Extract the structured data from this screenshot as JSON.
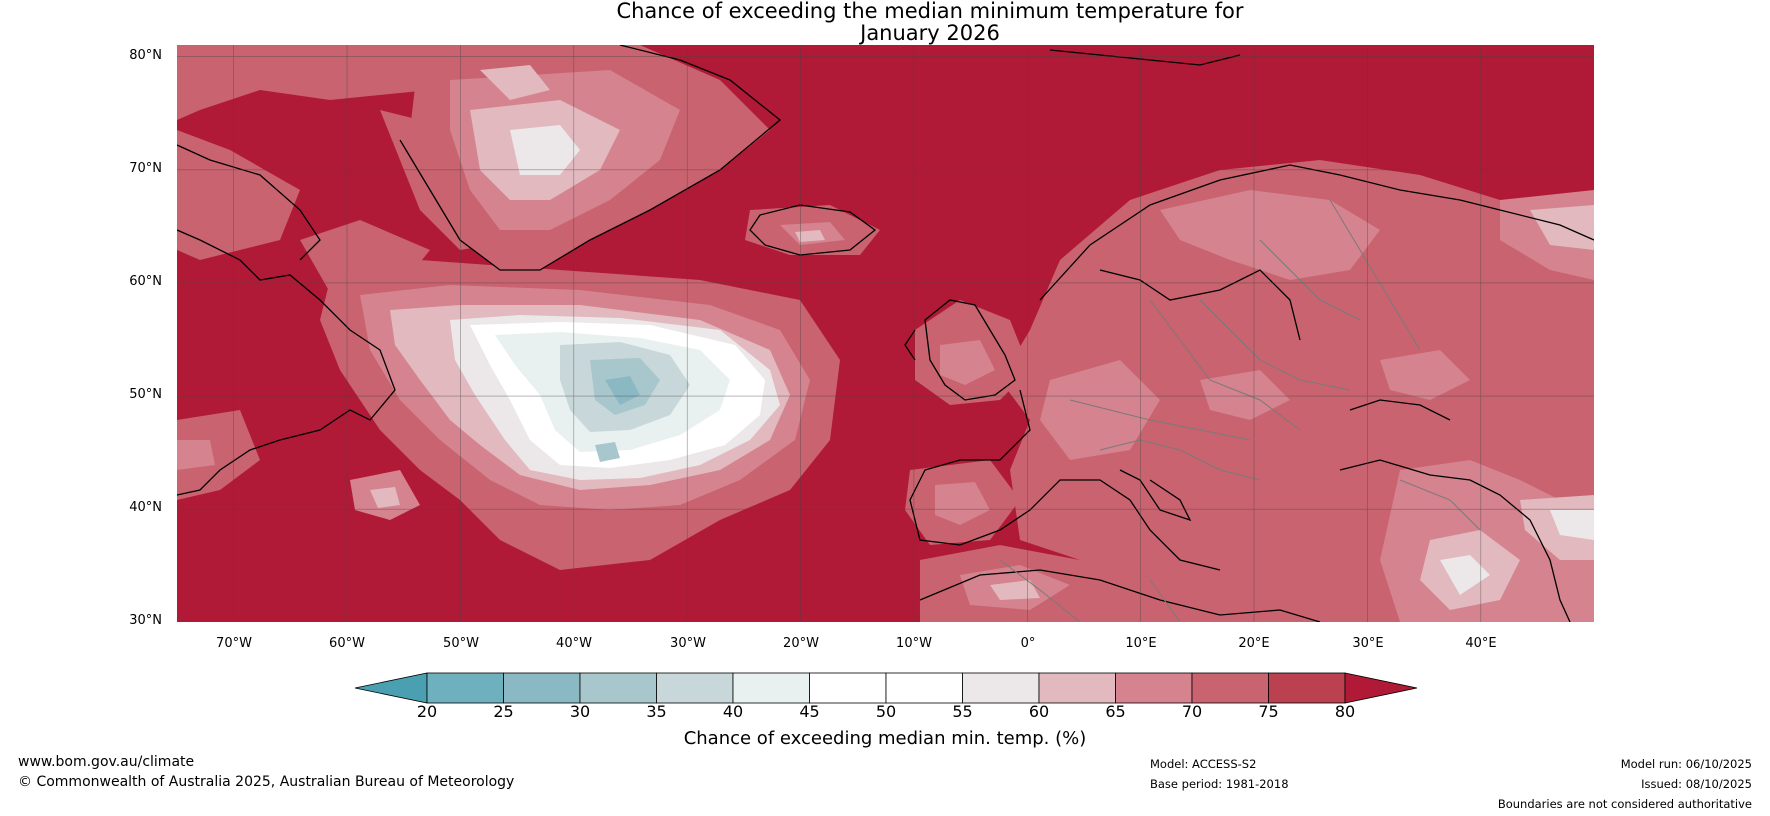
{
  "title": {
    "line1": "Chance of exceeding the median minimum temperature for",
    "line2": "January 2026"
  },
  "map": {
    "latitude_labels": [
      "80°N",
      "70°N",
      "60°N",
      "50°N",
      "40°N",
      "30°N"
    ],
    "longitude_labels": [
      "70°W",
      "60°W",
      "50°W",
      "40°W",
      "30°W",
      "20°W",
      "10°W",
      "0°",
      "10°E",
      "20°E",
      "30°E",
      "40°E"
    ],
    "extent": {
      "lon_min": -75,
      "lon_max": 50,
      "lat_min": 30,
      "lat_max": 81
    }
  },
  "colorbar": {
    "ticks": [
      "20",
      "25",
      "30",
      "35",
      "40",
      "45",
      "50",
      "55",
      "60",
      "65",
      "70",
      "75",
      "80"
    ],
    "colors": [
      "#4a9fb0",
      "#6fb0bf",
      "#8ab9c4",
      "#a8c7cd",
      "#c8d7da",
      "#e9f0f0",
      "#ffffff",
      "#ffffff",
      "#ece8e9",
      "#e2b9bf",
      "#d4838f",
      "#c8636f",
      "#bc4150",
      "#b01a37"
    ],
    "label": "Chance of exceeding median min. temp. (%)"
  },
  "footer": {
    "website": "www.bom.gov.au/climate",
    "copyright": "© Commonwealth of Australia 2025, Australian Bureau of Meteorology",
    "model": "Model: ACCESS-S2",
    "base_period": "Base period: 1981-2018",
    "model_run": "Model run: 06/10/2025",
    "issued": "Issued: 08/10/2025",
    "disclaimer": "Boundaries are not considered authoritative"
  }
}
